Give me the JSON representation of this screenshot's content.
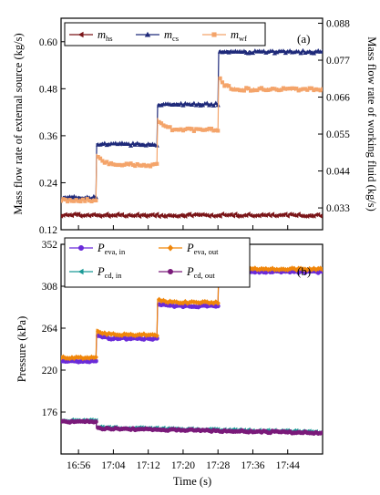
{
  "chart_data": [
    {
      "type": "line",
      "panel_label": "(a)",
      "xlabel": "",
      "ylabel_left": "Mass flow rate of external source (kg/s)",
      "ylabel_right": "Mass flow rate of working fluid (kg/s)",
      "ylim_left": [
        0.12,
        0.66
      ],
      "yticks_left": [
        "0.12",
        "0.24",
        "0.36",
        "0.48",
        "0.60"
      ],
      "ylim_right": [
        0.0265,
        0.0895
      ],
      "yticks_right": [
        "0.033",
        "0.044",
        "0.055",
        "0.066",
        "0.077",
        "0.088"
      ],
      "series": [
        {
          "key": "hs",
          "name": "m",
          "sub": "hs",
          "axis": "left",
          "color": "#7a1518",
          "marker": "left-triangle",
          "segments": [
            {
              "x0": 0,
              "x1": 60,
              "y": 0.157
            }
          ]
        },
        {
          "key": "cs",
          "name": "m",
          "sub": "cs",
          "axis": "left",
          "color": "#1f2a7a",
          "marker": "up-triangle",
          "segments": [
            {
              "x0": 0,
              "x1": 8,
              "y": 0.202
            },
            {
              "x0": 8,
              "x1": 22,
              "y": 0.338
            },
            {
              "x0": 22,
              "x1": 36,
              "y": 0.44
            },
            {
              "x0": 36,
              "x1": 60,
              "y": 0.574
            }
          ]
        },
        {
          "key": "wf",
          "name": "m",
          "sub": "wf",
          "axis": "right",
          "color": "#f4a46a",
          "marker": "square",
          "segments": [
            {
              "x0": 0,
              "x1": 8,
              "y": 0.0353
            },
            {
              "x0": 8,
              "x1": 22,
              "y": 0.0458,
              "peak": 0.0493
            },
            {
              "x0": 22,
              "x1": 36,
              "y": 0.0563,
              "peak": 0.0598
            },
            {
              "x0": 36,
              "x1": 60,
              "y": 0.0683,
              "peak": 0.0725
            }
          ]
        }
      ]
    },
    {
      "type": "line",
      "panel_label": "(b)",
      "xlabel": "Time (s)",
      "ylabel": "Pressure (kPa)",
      "ylim": [
        132,
        352
      ],
      "yticks": [
        "176",
        "220",
        "264",
        "308",
        "352"
      ],
      "x_start": "16:52",
      "xticks": [
        "16:56",
        "17:04",
        "17:12",
        "17:20",
        "17:28",
        "17:36",
        "17:44"
      ],
      "series": [
        {
          "key": "eva_in",
          "name": "P",
          "sub": "eva, in",
          "color": "#6a2bd9",
          "marker": "circle",
          "segments": [
            {
              "x0": 0,
              "x1": 8,
              "y": 229
            },
            {
              "x0": 8,
              "x1": 22,
              "y": 253,
              "peak": 258
            },
            {
              "x0": 22,
              "x1": 36,
              "y": 287,
              "peak": 291
            },
            {
              "x0": 36,
              "x1": 60,
              "y": 323
            }
          ]
        },
        {
          "key": "eva_out",
          "name": "P",
          "sub": "eva, out",
          "color": "#f0860a",
          "marker": "diamond",
          "segments": [
            {
              "x0": 0,
              "x1": 8,
              "y": 233
            },
            {
              "x0": 8,
              "x1": 22,
              "y": 257,
              "peak": 263
            },
            {
              "x0": 22,
              "x1": 36,
              "y": 291,
              "peak": 295
            },
            {
              "x0": 36,
              "x1": 60,
              "y": 326
            }
          ]
        },
        {
          "key": "cd_in",
          "name": "P",
          "sub": "cd, in",
          "color": "#1a9a96",
          "marker": "left-triangle",
          "segments": [
            {
              "x0": 0,
              "x1": 8,
              "y": 167
            },
            {
              "x0": 8,
              "x1": 60,
              "y": 160,
              "end": 155
            }
          ]
        },
        {
          "key": "cd_out",
          "name": "P",
          "sub": "cd, out",
          "color": "#7a1a7a",
          "marker": "circle",
          "segments": [
            {
              "x0": 0,
              "x1": 8,
              "y": 166
            },
            {
              "x0": 8,
              "x1": 60,
              "y": 159,
              "end": 154
            }
          ]
        }
      ]
    }
  ]
}
